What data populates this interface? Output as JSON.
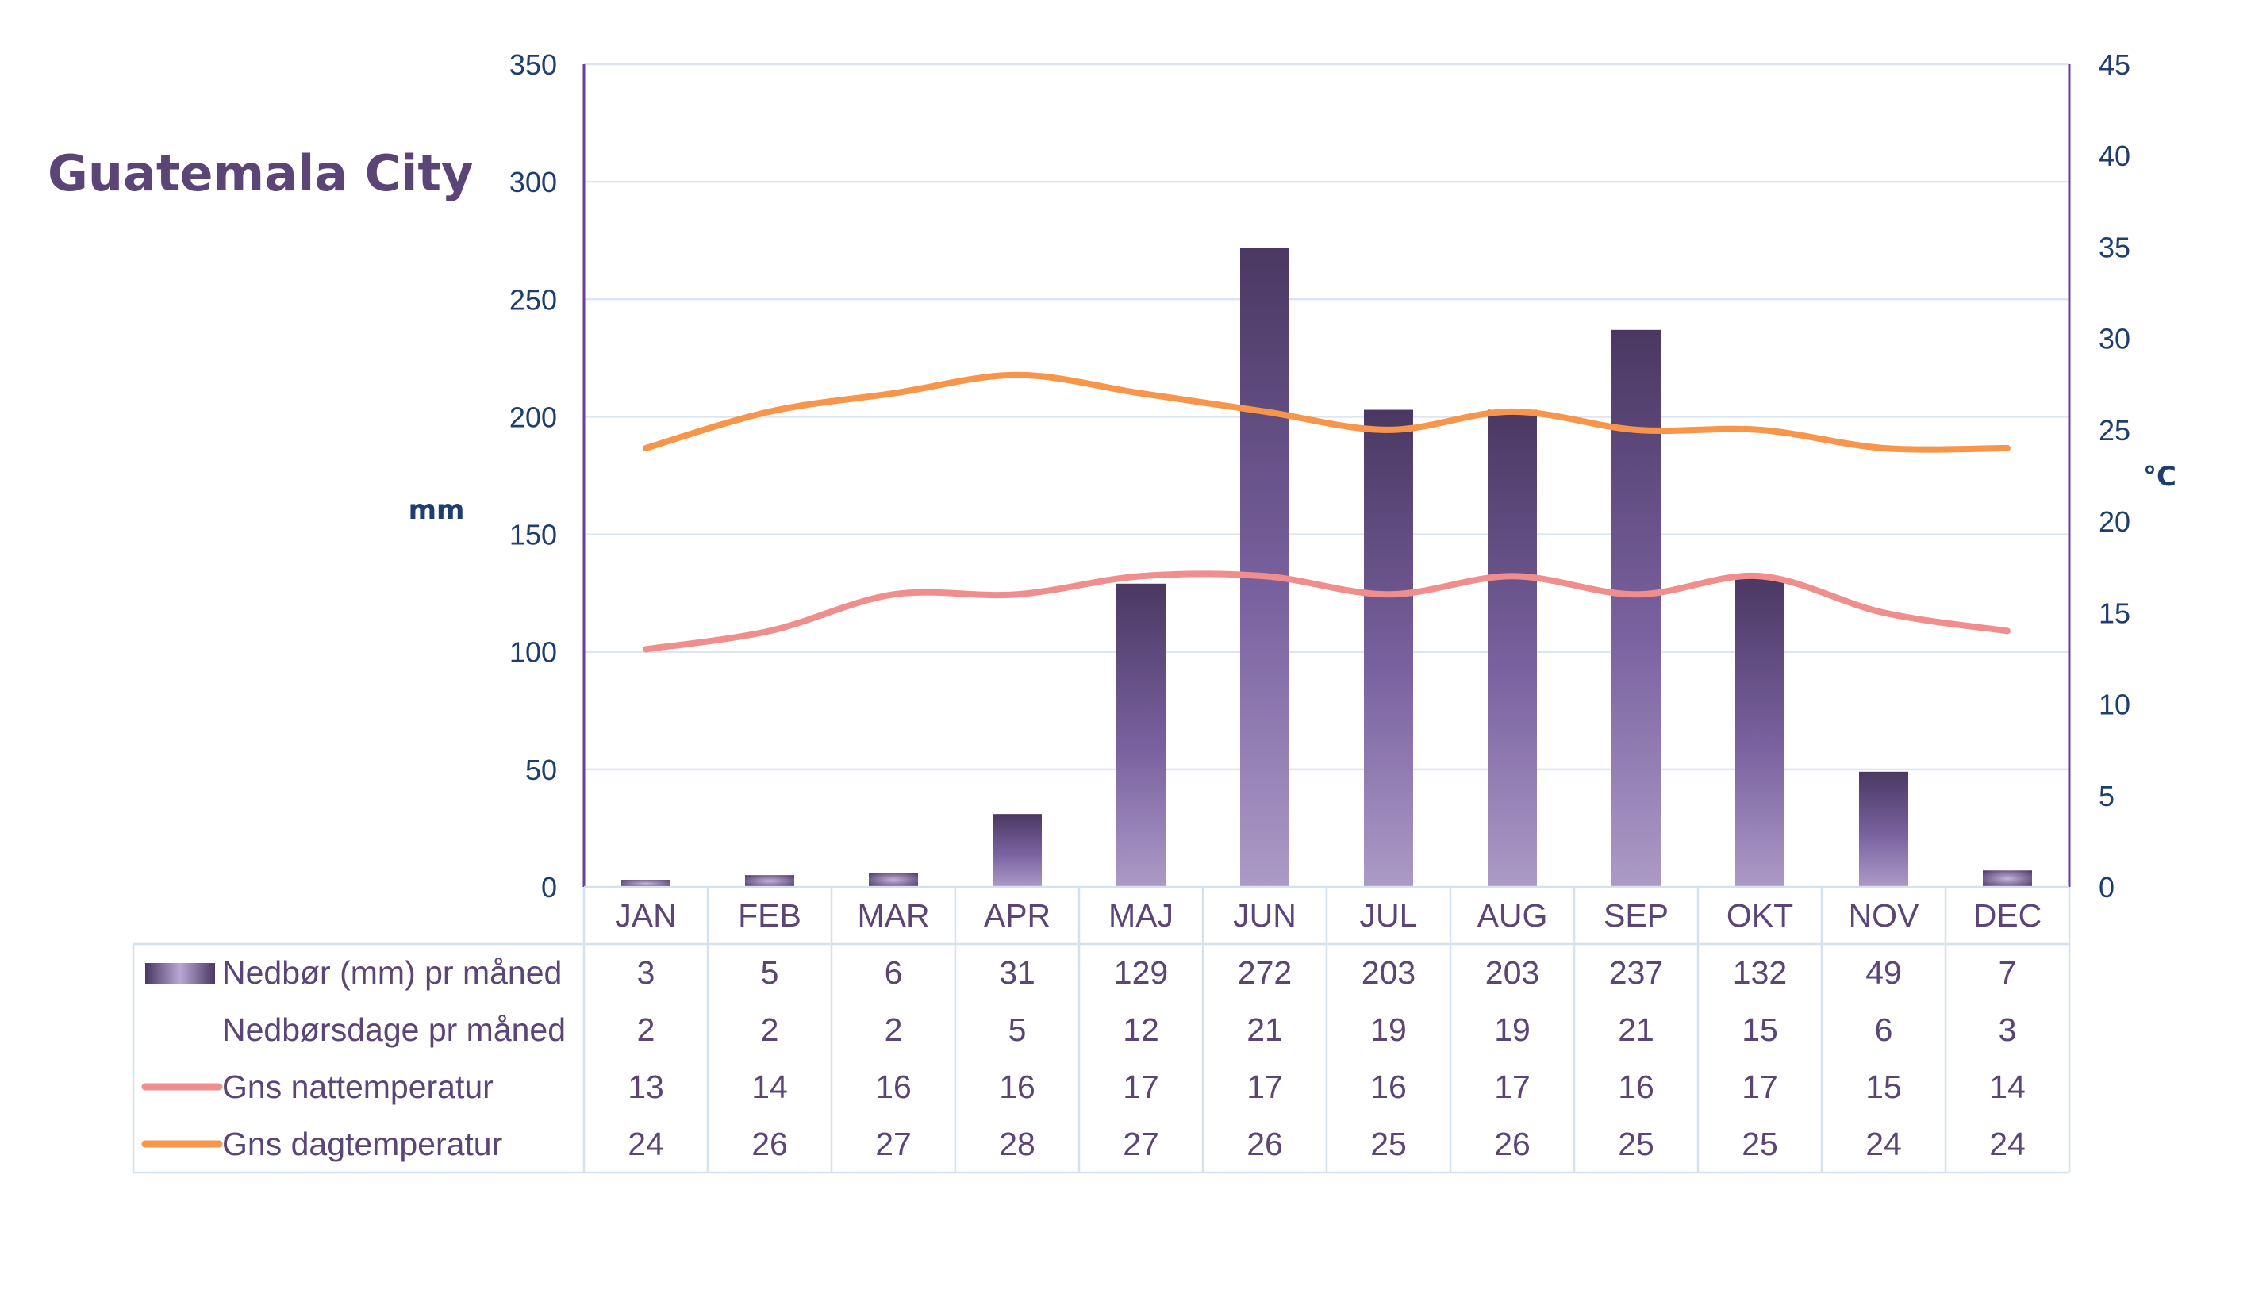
{
  "chart_data": {
    "type": "bar",
    "title": "Guatemala City",
    "ylabel_left": "mm",
    "ylabel_right": "°C",
    "ylim_left": [
      0,
      350
    ],
    "ylim_right": [
      0,
      45
    ],
    "yticks_left": [
      "0",
      "50",
      "100",
      "150",
      "200",
      "250",
      "300",
      "350"
    ],
    "yticks_right": [
      "0",
      "5",
      "10",
      "15",
      "20",
      "25",
      "30",
      "35",
      "40",
      "45"
    ],
    "grid": true,
    "legend": "data-table",
    "categories": [
      "JAN",
      "FEB",
      "MAR",
      "APR",
      "MAJ",
      "JUN",
      "JUL",
      "AUG",
      "SEP",
      "OKT",
      "NOV",
      "DEC"
    ],
    "series": [
      {
        "name": "Nedbør (mm) pr måned",
        "kind": "bar",
        "axis": "left",
        "color": "#4a3862",
        "values": [
          3,
          5,
          6,
          31,
          129,
          272,
          203,
          203,
          237,
          132,
          49,
          7
        ]
      },
      {
        "name": "Nedbørsdage pr måned",
        "kind": "table-only",
        "values": [
          2,
          2,
          2,
          5,
          12,
          21,
          19,
          19,
          21,
          15,
          6,
          3
        ]
      },
      {
        "name": "Gns nattemperatur",
        "kind": "line",
        "axis": "right",
        "color": "#f08d8d",
        "values": [
          13,
          14,
          16,
          16,
          17,
          17,
          16,
          17,
          16,
          17,
          15,
          14
        ]
      },
      {
        "name": "Gns dagtemperatur",
        "kind": "line",
        "axis": "right",
        "color": "#f7964a",
        "values": [
          24,
          26,
          27,
          28,
          27,
          26,
          25,
          26,
          25,
          25,
          24,
          24
        ]
      }
    ]
  }
}
